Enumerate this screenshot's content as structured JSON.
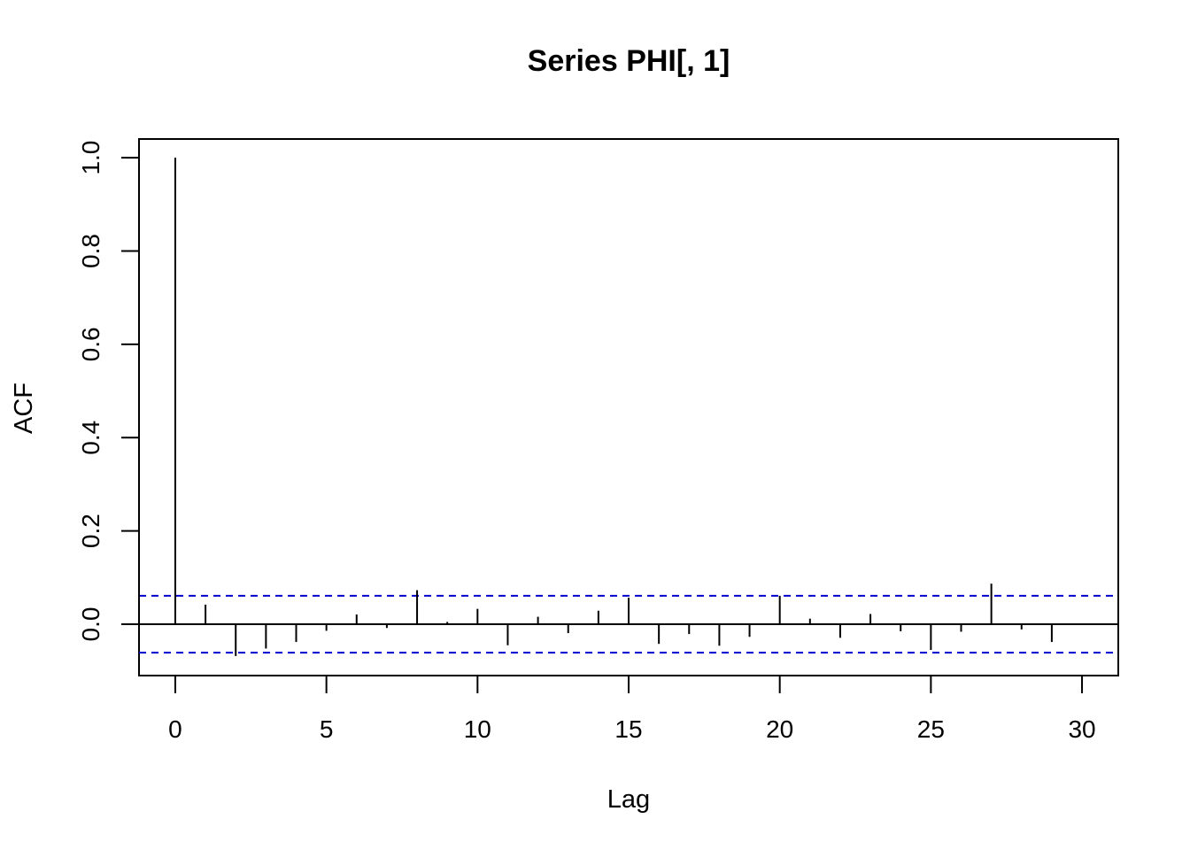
{
  "chart_data": {
    "type": "bar",
    "title": "Series  PHI[, 1]",
    "xlabel": "Lag",
    "ylabel": "ACF",
    "xlim": [
      -1.2,
      31.2
    ],
    "ylim": [
      -0.11,
      1.04
    ],
    "xticks": [
      0,
      5,
      10,
      15,
      20,
      25,
      30
    ],
    "yticks": [
      0.0,
      0.2,
      0.4,
      0.6,
      0.8,
      1.0
    ],
    "xtick_labels": [
      "0",
      "5",
      "10",
      "15",
      "20",
      "25",
      "30"
    ],
    "ytick_labels": [
      "0.0",
      "0.2",
      "0.4",
      "0.6",
      "0.8",
      "1.0"
    ],
    "lags": [
      0,
      1,
      2,
      3,
      4,
      5,
      6,
      7,
      8,
      9,
      10,
      11,
      12,
      13,
      14,
      15,
      16,
      17,
      18,
      19,
      20,
      21,
      22,
      23,
      24,
      25,
      26,
      27,
      28,
      29
    ],
    "acf": [
      1.0,
      0.042,
      -0.068,
      -0.052,
      -0.038,
      -0.014,
      0.021,
      -0.008,
      0.073,
      0.005,
      0.033,
      -0.045,
      0.016,
      -0.019,
      0.029,
      0.057,
      -0.042,
      -0.021,
      -0.046,
      -0.027,
      0.061,
      0.012,
      -0.029,
      0.022,
      -0.015,
      -0.055,
      -0.016,
      0.087,
      -0.011,
      -0.038
    ],
    "confidence_band": 0.061,
    "colors": {
      "bars": "#000000",
      "confidence": "#0000cc",
      "zero_line": "#000000"
    },
    "grid": false,
    "legend": "none"
  }
}
